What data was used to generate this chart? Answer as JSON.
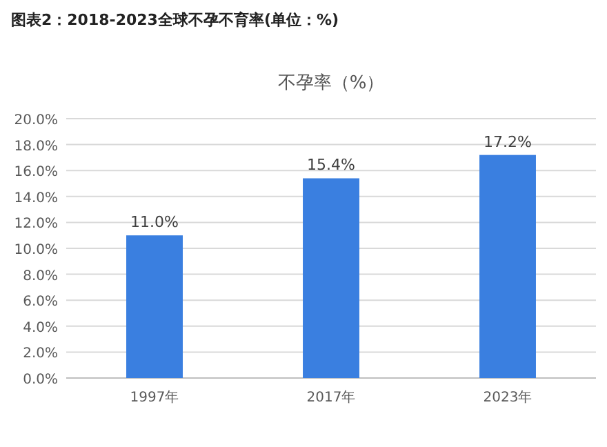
{
  "chart_data": {
    "type": "bar",
    "title": "图表2：2018-2023全球不孕不育率(单位：%)",
    "subtitle": "不孕率（%）",
    "categories": [
      "1997年",
      "2017年",
      "2023年"
    ],
    "series": [
      {
        "color": "#3a7fe0",
        "values": [
          11.0,
          15.4,
          17.2
        ],
        "value_labels": [
          "11.0%",
          "15.4%",
          "17.2%"
        ]
      }
    ],
    "ylim": [
      0,
      20
    ],
    "yticks": [
      {
        "value": 0,
        "label": "0.0%"
      },
      {
        "value": 2,
        "label": "2.0%"
      },
      {
        "value": 4,
        "label": "4.0%"
      },
      {
        "value": 6,
        "label": "6.0%"
      },
      {
        "value": 8,
        "label": "8.0%"
      },
      {
        "value": 10,
        "label": "10.0%"
      },
      {
        "value": 12,
        "label": "12.0%"
      },
      {
        "value": 14,
        "label": "14.0%"
      },
      {
        "value": 16,
        "label": "16.0%"
      },
      {
        "value": 18,
        "label": "18.0%"
      },
      {
        "value": 20,
        "label": "20.0%"
      }
    ],
    "grid": "y"
  }
}
